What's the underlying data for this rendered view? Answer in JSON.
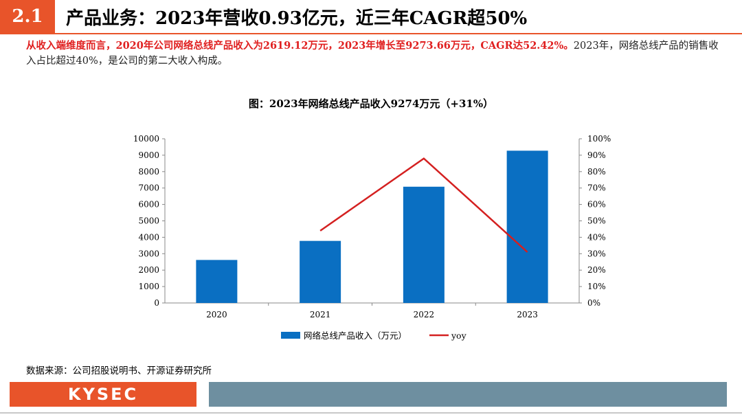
{
  "header": {
    "section_number": "2.1",
    "title": "产品业务：2023年营收0.93亿元，近三年CAGR超50%"
  },
  "summary": {
    "highlight": "从收入端维度而言，2020年公司网络总线产品收入为2619.12万元，2023年增长至9273.66万元，CAGR达52.42%。",
    "rest": "2023年，网络总线产品的销售收入占比超过40%，是公司的第二大收入构成。"
  },
  "source_note": "数据来源：公司招股说明书、开源证券研究所",
  "footer": {
    "logo_text": "KYSEC"
  },
  "colors": {
    "accent": "#e8542a",
    "bar": "#0a6fc2",
    "line": "#d42020",
    "footer_bar": "#6e8fa0"
  },
  "chart_data": {
    "type": "bar",
    "title": "图：2023年网络总线产品收入9274万元（+31%）",
    "categories": [
      "2020",
      "2021",
      "2022",
      "2023"
    ],
    "series": [
      {
        "name": "网络总线产品收入（万元）",
        "type": "bar",
        "axis": "left",
        "values": [
          2619.12,
          3780,
          7080,
          9273.66
        ]
      },
      {
        "name": "yoy",
        "type": "line",
        "axis": "right",
        "values": [
          null,
          44,
          88,
          31
        ]
      }
    ],
    "y_left": {
      "min": 0,
      "max": 10000,
      "ticks": [
        "0",
        "1000",
        "2000",
        "3000",
        "4000",
        "5000",
        "6000",
        "7000",
        "8000",
        "9000",
        "10000"
      ]
    },
    "y_right": {
      "min": 0,
      "max": 100,
      "ticks": [
        "0%",
        "10%",
        "20%",
        "30%",
        "40%",
        "50%",
        "60%",
        "70%",
        "80%",
        "90%",
        "100%"
      ]
    },
    "grid": false,
    "legend_position": "bottom"
  }
}
